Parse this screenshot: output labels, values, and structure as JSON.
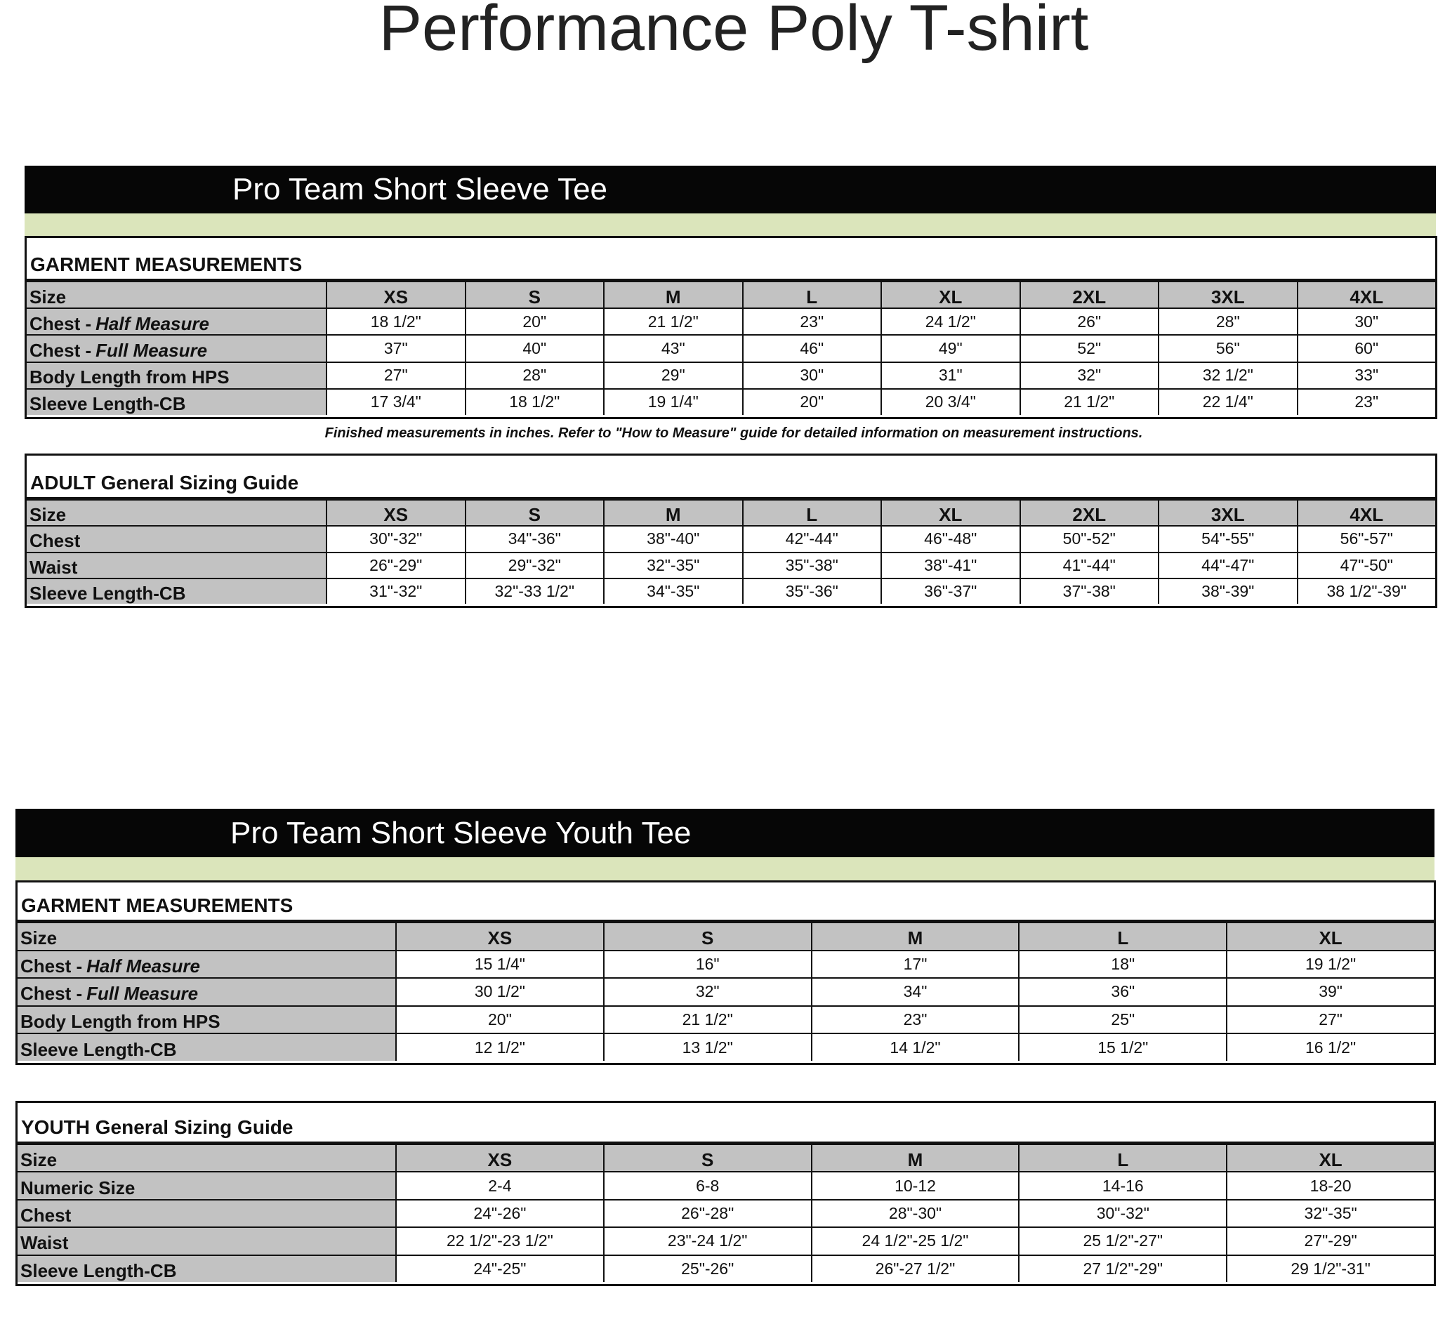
{
  "title": "Performance Poly T-shirt",
  "colors": {
    "header_bar": "#060606",
    "accent_strip": "#dbe5bb",
    "label_fill": "#c2c2c2"
  },
  "sections": [
    {
      "heading": "Pro Team Short Sleeve Tee",
      "tables": [
        {
          "title": "GARMENT MEASUREMENTS",
          "header": [
            "Size",
            "XS",
            "S",
            "M",
            "L",
            "XL",
            "2XL",
            "3XL",
            "4XL"
          ],
          "rows": [
            {
              "label": "Chest - ",
              "label_italic": "Half Measure",
              "values": [
                "18 1/2\"",
                "20\"",
                "21 1/2\"",
                "23\"",
                "24 1/2\"",
                "26\"",
                "28\"",
                "30\""
              ]
            },
            {
              "label": "Chest - ",
              "label_italic": "Full Measure",
              "values": [
                "37\"",
                "40\"",
                "43\"",
                "46\"",
                "49\"",
                "52\"",
                "56\"",
                "60\""
              ]
            },
            {
              "label": "Body Length from HPS",
              "values": [
                "27\"",
                "28\"",
                "29\"",
                "30\"",
                "31\"",
                "32\"",
                "32 1/2\"",
                "33\""
              ]
            },
            {
              "label": "Sleeve Length-CB",
              "values": [
                "17 3/4\"",
                "18 1/2\"",
                "19 1/4\"",
                "20\"",
                "20 3/4\"",
                "21 1/2\"",
                "22 1/4\"",
                "23\""
              ]
            }
          ]
        },
        {
          "title": "ADULT General Sizing Guide",
          "header": [
            "Size",
            "XS",
            "S",
            "M",
            "L",
            "XL",
            "2XL",
            "3XL",
            "4XL"
          ],
          "rows": [
            {
              "label": "Chest",
              "values": [
                "30\"-32\"",
                "34\"-36\"",
                "38\"-40\"",
                "42\"-44\"",
                "46\"-48\"",
                "50\"-52\"",
                "54\"-55\"",
                "56\"-57\""
              ]
            },
            {
              "label": "Waist",
              "values": [
                "26\"-29\"",
                "29\"-32\"",
                "32\"-35\"",
                "35\"-38\"",
                "38\"-41\"",
                "41\"-44\"",
                "44\"-47\"",
                "47\"-50\""
              ]
            },
            {
              "label": "Sleeve Length-CB",
              "values": [
                "31\"-32\"",
                "32\"-33 1/2\"",
                "34\"-35\"",
                "35\"-36\"",
                "36\"-37\"",
                "37\"-38\"",
                "38\"-39\"",
                "38 1/2\"-39\""
              ]
            }
          ]
        }
      ],
      "note": "Finished measurements in inches. Refer to \"How to Measure\" guide for detailed information on measurement instructions."
    },
    {
      "heading": "Pro Team Short Sleeve Youth Tee",
      "tables": [
        {
          "title": "GARMENT MEASUREMENTS",
          "header": [
            "Size",
            "XS",
            "S",
            "M",
            "L",
            "XL"
          ],
          "rows": [
            {
              "label": "Chest - ",
              "label_italic": "Half Measure",
              "values": [
                "15 1/4\"",
                "16\"",
                "17\"",
                "18\"",
                "19 1/2\""
              ]
            },
            {
              "label": "Chest - ",
              "label_italic": "Full Measure",
              "values": [
                "30 1/2\"",
                "32\"",
                "34\"",
                "36\"",
                "39\""
              ]
            },
            {
              "label": "Body Length from HPS",
              "values": [
                "20\"",
                "21 1/2\"",
                "23\"",
                "25\"",
                "27\""
              ]
            },
            {
              "label": "Sleeve Length-CB",
              "values": [
                "12 1/2\"",
                "13 1/2\"",
                "14 1/2\"",
                "15 1/2\"",
                "16 1/2\""
              ]
            }
          ]
        },
        {
          "title": "YOUTH General Sizing Guide",
          "header": [
            "Size",
            "XS",
            "S",
            "M",
            "L",
            "XL"
          ],
          "rows": [
            {
              "label": "Numeric Size",
              "values": [
                "2-4",
                "6-8",
                "10-12",
                "14-16",
                "18-20"
              ]
            },
            {
              "label": "Chest",
              "values": [
                "24\"-26\"",
                "26\"-28\"",
                "28\"-30\"",
                "30\"-32\"",
                "32\"-35\""
              ]
            },
            {
              "label": "Waist",
              "values": [
                "22 1/2\"-23 1/2\"",
                "23\"-24 1/2\"",
                "24 1/2\"-25 1/2\"",
                "25 1/2\"-27\"",
                "27\"-29\""
              ]
            },
            {
              "label": "Sleeve Length-CB",
              "values": [
                "24\"-25\"",
                "25\"-26\"",
                "26\"-27 1/2\"",
                "27 1/2\"-29\"",
                "29 1/2\"-31\""
              ]
            }
          ]
        }
      ]
    }
  ]
}
